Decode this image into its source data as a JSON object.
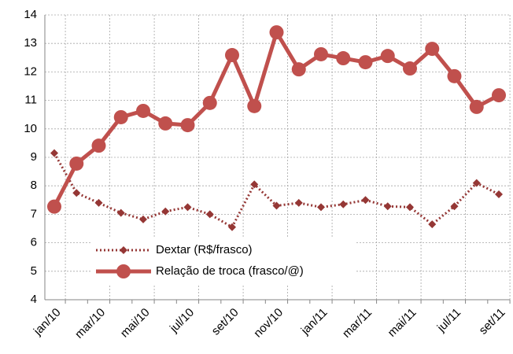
{
  "chart_data": {
    "type": "line",
    "categories": [
      "jan/10",
      null,
      "mar/10",
      null,
      "mai/10",
      null,
      "jul/10",
      null,
      "set/10",
      null,
      "nov/10",
      null,
      "jan/11",
      null,
      "mar/11",
      null,
      "mai/11",
      null,
      "jul/11",
      null,
      "set/11"
    ],
    "series": [
      {
        "name": "Dextar (R$/frasco)",
        "color": "#953735",
        "style": "dotted-diamond",
        "values": [
          9.15,
          7.75,
          7.4,
          7.05,
          6.82,
          7.1,
          7.25,
          7.0,
          6.55,
          8.05,
          7.3,
          7.4,
          7.25,
          7.35,
          7.5,
          7.28,
          7.25,
          6.65,
          7.28,
          8.1,
          7.7
        ]
      },
      {
        "name": "Relação de troca (frasco/@)",
        "color": "#c0504d",
        "style": "solid-circle",
        "values": [
          7.27,
          8.78,
          9.41,
          10.41,
          10.63,
          10.19,
          10.13,
          10.91,
          12.59,
          10.8,
          13.39,
          12.09,
          12.62,
          12.48,
          12.34,
          12.56,
          12.12,
          12.81,
          11.85,
          10.77,
          11.18
        ]
      }
    ],
    "ylim": [
      4,
      14
    ],
    "yticks": [
      4,
      5,
      6,
      7,
      8,
      9,
      10,
      11,
      12,
      13,
      14
    ],
    "grid": true,
    "legend": "lower-left"
  }
}
